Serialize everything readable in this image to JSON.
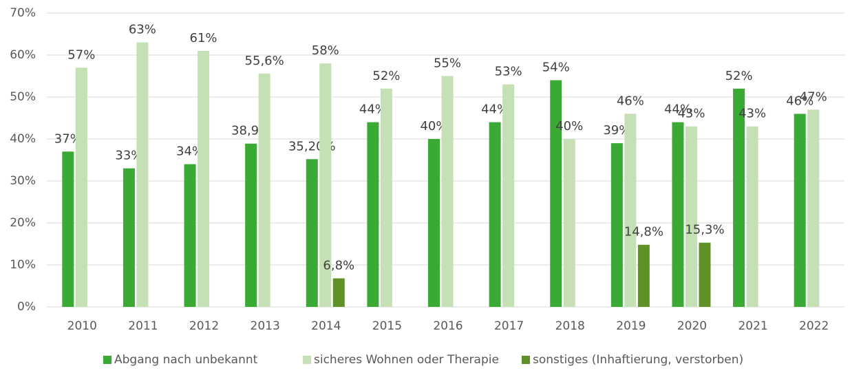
{
  "chart_data": {
    "type": "bar",
    "categories": [
      "2010",
      "2011",
      "2012",
      "2013",
      "2014",
      "2015",
      "2016",
      "2017",
      "2018",
      "2019",
      "2020",
      "2021",
      "2022"
    ],
    "series": [
      {
        "name": "Abgang nach unbekannt",
        "color": "#3aaa35",
        "values": [
          37,
          33,
          34,
          38.9,
          35.2,
          44,
          40,
          44,
          54,
          39,
          44,
          52,
          46
        ],
        "value_labels": [
          "37%",
          "33%",
          "34%",
          "38,9%",
          "35,20%",
          "44%",
          "40%",
          "44%",
          "54%",
          "39%",
          "44%",
          "52%",
          "46%"
        ]
      },
      {
        "name": "sicheres Wohnen oder Therapie",
        "color": "#c5e0b4",
        "values": [
          57,
          63,
          61,
          55.6,
          58,
          52,
          55,
          53,
          40,
          46,
          43,
          43,
          47
        ],
        "value_labels": [
          "57%",
          "63%",
          "61%",
          "55,6%",
          "58%",
          "52%",
          "55%",
          "53%",
          "40%",
          "46%",
          "43%",
          "43%",
          "47%"
        ]
      },
      {
        "name": "sonstiges (Inhaftierung, verstorben)",
        "color": "#5f9128",
        "values": [
          null,
          null,
          null,
          null,
          6.8,
          null,
          null,
          null,
          null,
          14.8,
          15.3,
          null,
          null
        ],
        "value_labels": [
          null,
          null,
          null,
          null,
          "6,8%",
          null,
          null,
          null,
          null,
          "14,8%",
          "15,3%",
          null,
          null
        ]
      }
    ],
    "ylim": [
      0,
      70
    ],
    "yticks": [
      {
        "value": 0,
        "label": "0%"
      },
      {
        "value": 10,
        "label": "10%"
      },
      {
        "value": 20,
        "label": "20%"
      },
      {
        "value": 30,
        "label": "30%"
      },
      {
        "value": 40,
        "label": "40%"
      },
      {
        "value": 50,
        "label": "50%"
      },
      {
        "value": 60,
        "label": "60%"
      },
      {
        "value": 70,
        "label": "70%"
      }
    ],
    "grid": true,
    "legend": "bottom"
  }
}
